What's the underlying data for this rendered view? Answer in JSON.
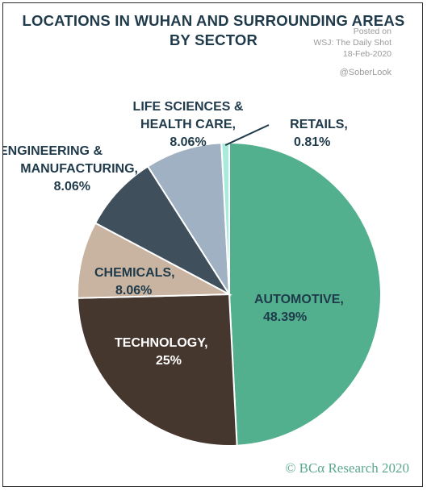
{
  "header": {
    "title_line1": "LOCATIONS IN WUHAN AND SURROUNDING AREAS",
    "title_line2": "BY SECTOR"
  },
  "source": {
    "line1": "Posted on",
    "line2": "WSJ: The Daily Shot",
    "line3": "18-Feb-2020",
    "handle": "@SoberLook"
  },
  "footer": {
    "credit": "© BCα Research 2020"
  },
  "chart_data": {
    "type": "pie",
    "title": "LOCATIONS IN WUHAN AND SURROUNDING AREAS BY SECTOR",
    "slices": [
      {
        "name": "AUTOMOTIVE,",
        "value": 48.39,
        "value_label": "48.39%",
        "color": "#52b08e"
      },
      {
        "name": "TECHNOLOGY,",
        "value": 25,
        "value_label": "25%",
        "color": "#45362e"
      },
      {
        "name": "CHEMICALS,",
        "value": 8.06,
        "value_label": "8.06%",
        "color": "#c8b4a0"
      },
      {
        "name": "ENGINEERING & MANUFACTURING,",
        "value": 8.06,
        "value_label": "8.06%",
        "color": "#3f4f5c"
      },
      {
        "name": "LIFE SCIENCES & HEALTH CARE,",
        "value": 8.06,
        "value_label": "8.06%",
        "color": "#9fb1c2"
      },
      {
        "name": "RETAILS,",
        "value": 0.81,
        "value_label": "0.81%",
        "color": "#a8eadb"
      }
    ],
    "label_color_dark": "#1f3a4a",
    "label_color_light": "#ffffff"
  }
}
